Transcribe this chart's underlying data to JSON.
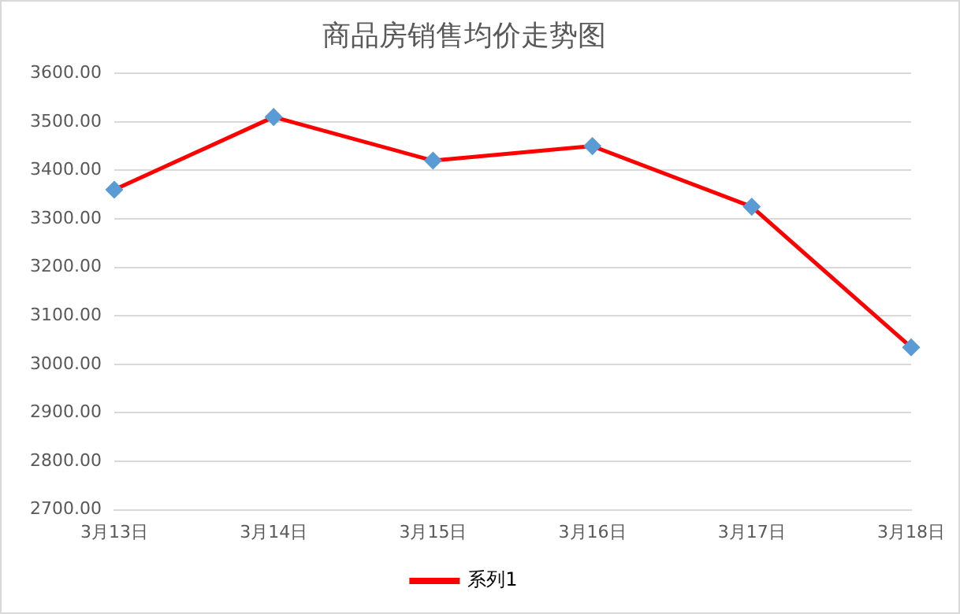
{
  "chart_data": {
    "type": "line",
    "title": "商品房销售均价走势图",
    "categories": [
      "3月13日",
      "3月14日",
      "3月15日",
      "3月16日",
      "3月17日",
      "3月18日"
    ],
    "series": [
      {
        "name": "系列1",
        "color": "#ff0000",
        "values": [
          3360,
          3510,
          3420,
          3450,
          3325,
          3035
        ]
      }
    ],
    "ylim": [
      2700,
      3600
    ],
    "yticks": [
      {
        "value": 2700,
        "label": "2700.00"
      },
      {
        "value": 2800,
        "label": "2800.00"
      },
      {
        "value": 2900,
        "label": "2900.00"
      },
      {
        "value": 3000,
        "label": "3000.00"
      },
      {
        "value": 3100,
        "label": "3100.00"
      },
      {
        "value": 3200,
        "label": "3200.00"
      },
      {
        "value": 3300,
        "label": "3300.00"
      },
      {
        "value": 3400,
        "label": "3400.00"
      },
      {
        "value": 3500,
        "label": "3500.00"
      },
      {
        "value": 3600,
        "label": "3600.00"
      }
    ],
    "grid": "y",
    "legend": "bottom",
    "marker": "diamond",
    "line_style": "solid"
  }
}
